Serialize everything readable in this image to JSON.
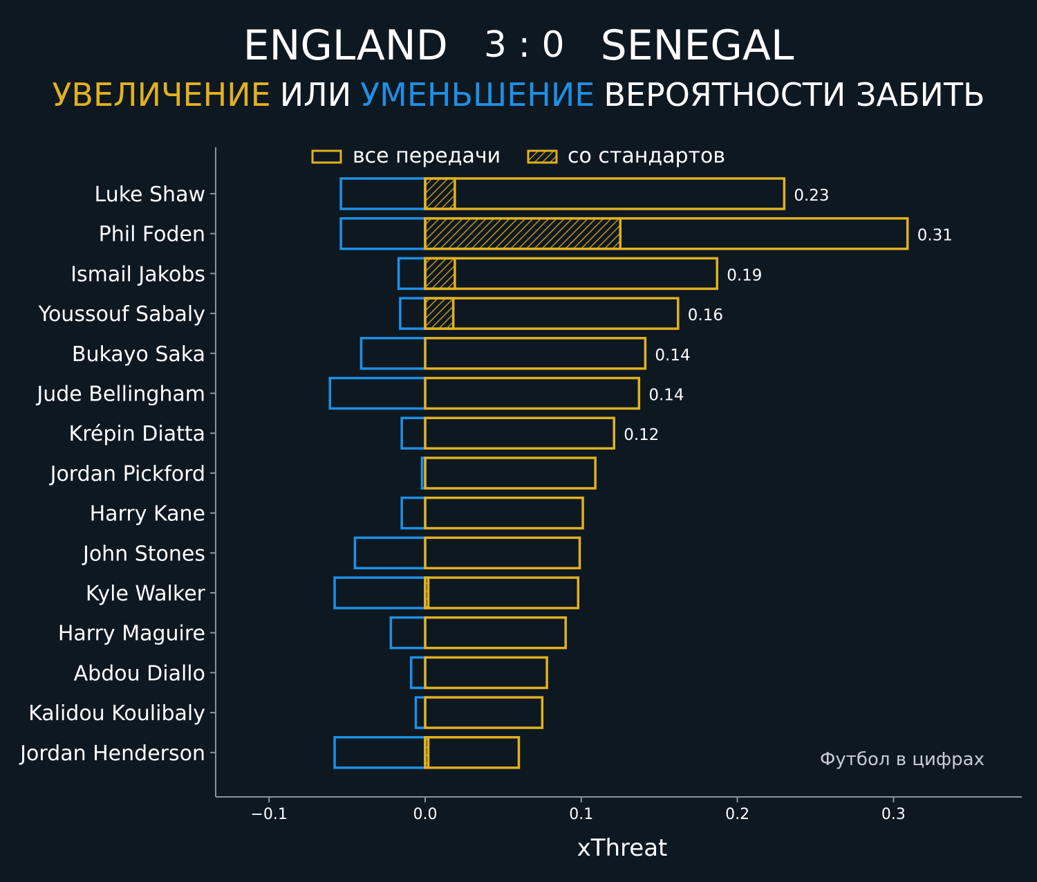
{
  "header": {
    "home_team": "ENGLAND",
    "score": "3 : 0",
    "away_team": "SENEGAL",
    "subtitle_increase": "УВЕЛИЧЕНИЕ",
    "subtitle_or": "ИЛИ",
    "subtitle_decrease": "УМЕНЬШЕНИЕ",
    "subtitle_rest": "ВЕРОЯТНОСТИ ЗАБИТЬ"
  },
  "legend": {
    "all_passes": "все передачи",
    "set_pieces": "со стандартов"
  },
  "watermark": "Футбол в цифрах",
  "colors": {
    "background": "#0e1821",
    "increase": "#e1b121",
    "decrease": "#1e90e6",
    "text": "#ffffff",
    "axis": "#8a96a0"
  },
  "chart_data": {
    "type": "bar",
    "orientation": "horizontal",
    "xlabel": "xThreat",
    "xlim": [
      -0.135,
      0.38
    ],
    "xticks": [
      -0.1,
      0.0,
      0.1,
      0.2,
      0.3
    ],
    "xtick_labels": [
      "−0.1",
      "0.0",
      "0.1",
      "0.2",
      "0.3"
    ],
    "legend_position": "top",
    "players": [
      {
        "name": "Luke Shaw",
        "positive": 0.23,
        "set_piece": 0.019,
        "negative": -0.054,
        "label": "0.23"
      },
      {
        "name": "Phil Foden",
        "positive": 0.309,
        "set_piece": 0.125,
        "negative": -0.054,
        "label": "0.31"
      },
      {
        "name": "Ismail Jakobs",
        "positive": 0.187,
        "set_piece": 0.019,
        "negative": -0.017,
        "label": "0.19"
      },
      {
        "name": "Youssouf Sabaly",
        "positive": 0.162,
        "set_piece": 0.018,
        "negative": -0.016,
        "label": "0.16"
      },
      {
        "name": "Bukayo Saka",
        "positive": 0.141,
        "set_piece": 0.0,
        "negative": -0.041,
        "label": "0.14"
      },
      {
        "name": "Jude Bellingham",
        "positive": 0.137,
        "set_piece": 0.0,
        "negative": -0.061,
        "label": "0.14"
      },
      {
        "name": "Krépin Diatta",
        "positive": 0.121,
        "set_piece": 0.0,
        "negative": -0.015,
        "label": "0.12"
      },
      {
        "name": "Jordan Pickford",
        "positive": 0.109,
        "set_piece": 0.0,
        "negative": -0.002,
        "label": ""
      },
      {
        "name": "Harry Kane",
        "positive": 0.101,
        "set_piece": 0.0,
        "negative": -0.015,
        "label": ""
      },
      {
        "name": "John Stones",
        "positive": 0.099,
        "set_piece": 0.0,
        "negative": -0.045,
        "label": ""
      },
      {
        "name": "Kyle Walker",
        "positive": 0.098,
        "set_piece": 0.002,
        "negative": -0.058,
        "label": ""
      },
      {
        "name": "Harry Maguire",
        "positive": 0.09,
        "set_piece": 0.0,
        "negative": -0.022,
        "label": ""
      },
      {
        "name": "Abdou Diallo",
        "positive": 0.078,
        "set_piece": 0.0,
        "negative": -0.009,
        "label": ""
      },
      {
        "name": "Kalidou Koulibaly",
        "positive": 0.075,
        "set_piece": 0.0,
        "negative": -0.006,
        "label": ""
      },
      {
        "name": "Jordan Henderson",
        "positive": 0.06,
        "set_piece": 0.002,
        "negative": -0.058,
        "label": ""
      }
    ]
  }
}
